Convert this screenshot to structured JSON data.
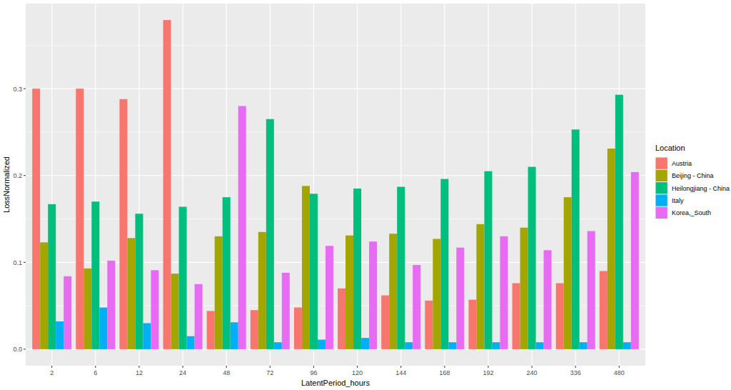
{
  "chart_data": {
    "type": "bar",
    "x_label": "LatentPeriod_hours",
    "y_label": "LossNormalized",
    "legend_title": "Location",
    "legend": "right",
    "grid": true,
    "categories": [
      "2",
      "6",
      "12",
      "24",
      "48",
      "72",
      "96",
      "120",
      "144",
      "168",
      "192",
      "240",
      "336",
      "480"
    ],
    "ylim": [
      -0.019,
      0.398
    ],
    "yticks": [
      {
        "value": 0,
        "label": "0.0"
      },
      0.1,
      0.2,
      0.3
    ],
    "series": [
      {
        "name": "Austria",
        "color": "#F8766D",
        "values": [
          0.3,
          0.3,
          0.288,
          0.379,
          0.044,
          0.045,
          0.048,
          0.07,
          0.062,
          0.056,
          0.057,
          0.076,
          0.076,
          0.09
        ]
      },
      {
        "name": "Beijing - China",
        "color": "#A3A500",
        "values": [
          0.123,
          0.093,
          0.128,
          0.087,
          0.13,
          0.135,
          0.188,
          0.131,
          0.133,
          0.127,
          0.144,
          0.14,
          0.175,
          0.231
        ]
      },
      {
        "name": "Heilongjiang - China",
        "color": "#00BF7D",
        "values": [
          0.167,
          0.17,
          0.156,
          0.164,
          0.175,
          0.265,
          0.179,
          0.185,
          0.187,
          0.196,
          0.205,
          0.21,
          0.253,
          0.293
        ]
      },
      {
        "name": "Italy",
        "color": "#00B0F6",
        "values": [
          0.032,
          0.048,
          0.03,
          0.015,
          0.031,
          0.008,
          0.011,
          0.013,
          0.008,
          0.008,
          0.008,
          0.008,
          0.008,
          0.008
        ]
      },
      {
        "name": "Korea,_South",
        "color": "#E76BF3",
        "values": [
          0.084,
          0.102,
          0.091,
          0.075,
          0.28,
          0.088,
          0.119,
          0.124,
          0.097,
          0.117,
          0.13,
          0.114,
          0.136,
          0.204
        ]
      }
    ]
  }
}
